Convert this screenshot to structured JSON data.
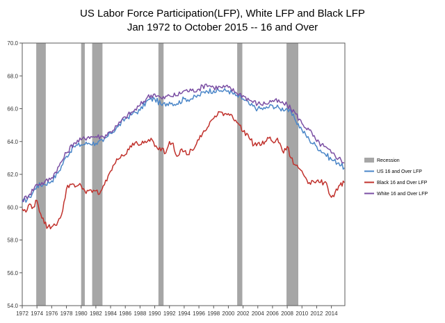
{
  "chart_data": {
    "type": "line",
    "title": "US Labor Force Participation(LFP), White LFP and Black LFP",
    "subtitle": "Jan 1972 to October 2015 -- 16 and Over",
    "xlabel": "",
    "ylabel": "",
    "xlim": [
      1972,
      2015.83
    ],
    "ylim": [
      54,
      70
    ],
    "x_ticks": [
      "1972",
      "1974",
      "1976",
      "1978",
      "1980",
      "1982",
      "1984",
      "1986",
      "1988",
      "1990",
      "1992",
      "1994",
      "1996",
      "1998",
      "2000",
      "2002",
      "2004",
      "2006",
      "2008",
      "2010",
      "2012",
      "2014"
    ],
    "y_ticks": [
      "54.0",
      "56.0",
      "58.0",
      "60.0",
      "62.0",
      "64.0",
      "66.0",
      "68.0",
      "70.0"
    ],
    "grid": "none",
    "legend_position": "right",
    "legend": [
      {
        "label": "Recession",
        "color": "#a6a6a6",
        "kind": "box"
      },
      {
        "label": "US 16 and Over LFP",
        "color": "#4a86c8",
        "kind": "line"
      },
      {
        "label": "Black 16 and  Over LFP",
        "color": "#c0302b",
        "kind": "line"
      },
      {
        "label": "White 16 and Over LFP",
        "color": "#7a4ea3",
        "kind": "line"
      }
    ],
    "recessions": [
      [
        1973.9,
        1975.2
      ],
      [
        1980.0,
        1980.5
      ],
      [
        1981.5,
        1982.9
      ],
      [
        1990.5,
        1991.2
      ],
      [
        2001.2,
        2001.9
      ],
      [
        2007.9,
        2009.5
      ]
    ],
    "series": [
      {
        "name": "US 16 and Over LFP",
        "color": "#4a86c8",
        "x": [
          1972,
          1973,
          1974,
          1975,
          1976,
          1977,
          1978,
          1979,
          1980,
          1981,
          1982,
          1983,
          1984,
          1985,
          1986,
          1987,
          1988,
          1989,
          1990,
          1991,
          1992,
          1993,
          1994,
          1995,
          1996,
          1997,
          1998,
          1999,
          2000,
          2001,
          2002,
          2003,
          2004,
          2005,
          2006,
          2007,
          2008,
          2009,
          2010,
          2011,
          2012,
          2013,
          2014,
          2015,
          2015.75
        ],
        "y": [
          60.3,
          60.6,
          61.3,
          61.4,
          61.6,
          62.2,
          63.1,
          63.7,
          63.8,
          63.9,
          63.9,
          64.0,
          64.5,
          64.9,
          65.4,
          65.7,
          65.9,
          66.5,
          66.6,
          66.2,
          66.4,
          66.3,
          66.6,
          66.6,
          66.8,
          67.1,
          67.1,
          67.1,
          67.1,
          66.8,
          66.6,
          66.2,
          66.0,
          66.0,
          66.2,
          66.0,
          66.0,
          65.4,
          64.7,
          64.1,
          63.7,
          63.3,
          62.9,
          62.7,
          62.4
        ]
      },
      {
        "name": "White 16 and Over LFP",
        "color": "#7a4ea3",
        "x": [
          1972,
          1973,
          1974,
          1975,
          1976,
          1977,
          1978,
          1979,
          1980,
          1981,
          1982,
          1983,
          1984,
          1985,
          1986,
          1987,
          1988,
          1989,
          1990,
          1991,
          1992,
          1993,
          1994,
          1995,
          1996,
          1997,
          1998,
          1999,
          2000,
          2001,
          2002,
          2003,
          2004,
          2005,
          2006,
          2007,
          2008,
          2009,
          2010,
          2011,
          2012,
          2013,
          2014,
          2015,
          2015.75
        ],
        "y": [
          60.4,
          60.8,
          61.4,
          61.5,
          61.8,
          62.5,
          63.3,
          63.9,
          64.1,
          64.3,
          64.3,
          64.3,
          64.6,
          65.0,
          65.5,
          65.8,
          66.2,
          66.7,
          66.9,
          66.6,
          66.8,
          66.8,
          67.1,
          67.1,
          67.2,
          67.5,
          67.3,
          67.3,
          67.3,
          67.0,
          66.8,
          66.5,
          66.3,
          66.3,
          66.5,
          66.4,
          66.2,
          65.8,
          65.1,
          64.7,
          64.0,
          63.7,
          63.3,
          63.0,
          62.7
        ]
      },
      {
        "name": "Black 16 and  Over LFP",
        "color": "#c0302b",
        "x": [
          1972,
          1972.5,
          1973,
          1973.5,
          1974,
          1974.5,
          1975,
          1975.5,
          1976,
          1976.5,
          1977,
          1977.5,
          1978,
          1978.5,
          1979,
          1979.5,
          1980,
          1980.5,
          1981,
          1981.5,
          1982,
          1982.5,
          1983,
          1983.5,
          1984,
          1984.5,
          1985,
          1985.5,
          1986,
          1986.5,
          1987,
          1987.5,
          1988,
          1988.5,
          1989,
          1989.5,
          1990,
          1990.5,
          1991,
          1991.5,
          1992,
          1992.5,
          1993,
          1993.5,
          1994,
          1994.5,
          1995,
          1995.5,
          1996,
          1996.5,
          1997,
          1997.5,
          1998,
          1998.5,
          1999,
          1999.5,
          2000,
          2000.5,
          2001,
          2001.5,
          2002,
          2002.5,
          2003,
          2003.5,
          2004,
          2004.5,
          2005,
          2005.5,
          2006,
          2006.5,
          2007,
          2007.5,
          2008,
          2008.5,
          2009,
          2009.5,
          2010,
          2010.5,
          2011,
          2011.5,
          2012,
          2012.5,
          2013,
          2013.5,
          2014,
          2014.5,
          2015,
          2015.75
        ],
        "y": [
          59.9,
          59.7,
          60.2,
          60.0,
          60.4,
          59.6,
          59.0,
          58.8,
          58.8,
          58.9,
          59.3,
          59.8,
          61.1,
          61.4,
          61.4,
          61.3,
          61.3,
          61.0,
          61.0,
          60.9,
          61.0,
          60.8,
          61.3,
          61.6,
          62.2,
          62.6,
          62.9,
          63.2,
          63.2,
          63.5,
          63.9,
          64.0,
          63.8,
          63.9,
          64.0,
          64.2,
          63.7,
          63.5,
          63.6,
          63.3,
          64.0,
          63.9,
          63.1,
          63.5,
          63.4,
          63.2,
          63.5,
          63.7,
          64.1,
          64.5,
          64.7,
          65.2,
          65.4,
          65.6,
          65.8,
          65.7,
          65.7,
          65.6,
          65.3,
          65.0,
          64.6,
          64.5,
          64.1,
          63.8,
          63.9,
          63.8,
          64.0,
          64.2,
          64.0,
          64.1,
          63.9,
          63.3,
          63.7,
          63.0,
          62.6,
          62.4,
          62.2,
          61.8,
          61.5,
          61.6,
          61.6,
          61.5,
          61.5,
          61.2,
          60.6,
          60.9,
          61.3,
          61.5
        ]
      }
    ]
  }
}
